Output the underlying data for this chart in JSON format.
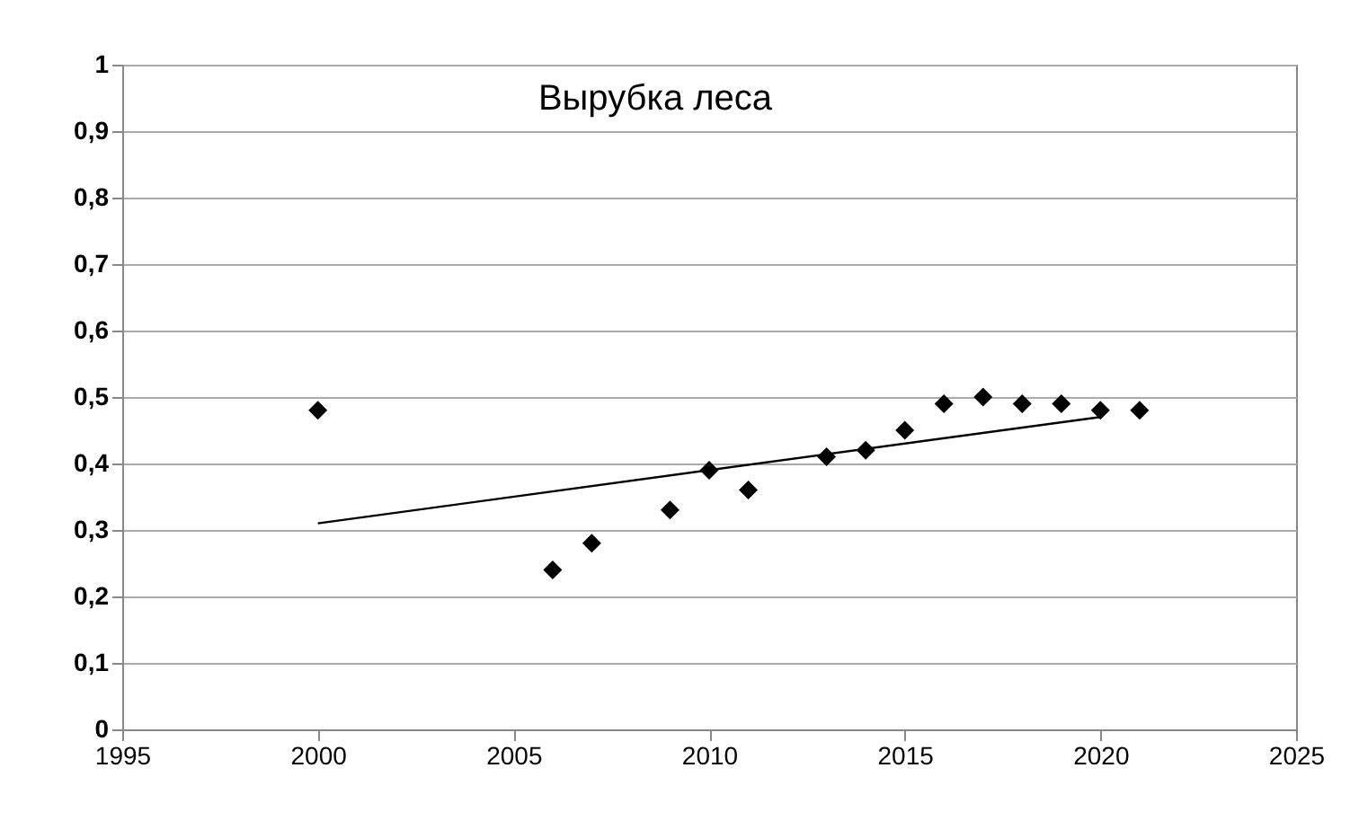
{
  "chart_data": {
    "type": "scatter",
    "title": "Вырубка леса",
    "x": [
      2000,
      2006,
      2007,
      2009,
      2010,
      2011,
      2013,
      2014,
      2015,
      2016,
      2017,
      2018,
      2019,
      2020,
      2021
    ],
    "series": [
      {
        "color": "#000000",
        "marker": "diamond",
        "values": [
          0.48,
          0.24,
          0.28,
          0.33,
          0.39,
          0.36,
          0.41,
          0.42,
          0.45,
          0.49,
          0.5,
          0.49,
          0.49,
          0.48,
          0.48
        ]
      },
      {
        "type": "line",
        "color": "#000000",
        "line_style": "solid",
        "x": [
          2000,
          2020
        ],
        "values": [
          0.31,
          0.47
        ]
      }
    ],
    "xlim": [
      1995,
      2025
    ],
    "xticks": [
      1995,
      2000,
      2005,
      2010,
      2015,
      2020,
      2025
    ],
    "ylim": [
      0,
      1
    ],
    "yticks": [
      0,
      {
        "value": 0.1,
        "label": "0,1"
      },
      {
        "value": 0.2,
        "label": "0,2"
      },
      {
        "value": 0.3,
        "label": "0,3"
      },
      {
        "value": 0.4,
        "label": "0,4"
      },
      {
        "value": 0.5,
        "label": "0,5"
      },
      {
        "value": 0.6,
        "label": "0,6"
      },
      {
        "value": 0.7,
        "label": "0,7"
      },
      {
        "value": 0.8,
        "label": "0,8"
      },
      {
        "value": 0.9,
        "label": "0,9"
      },
      1
    ],
    "grid": "y"
  }
}
